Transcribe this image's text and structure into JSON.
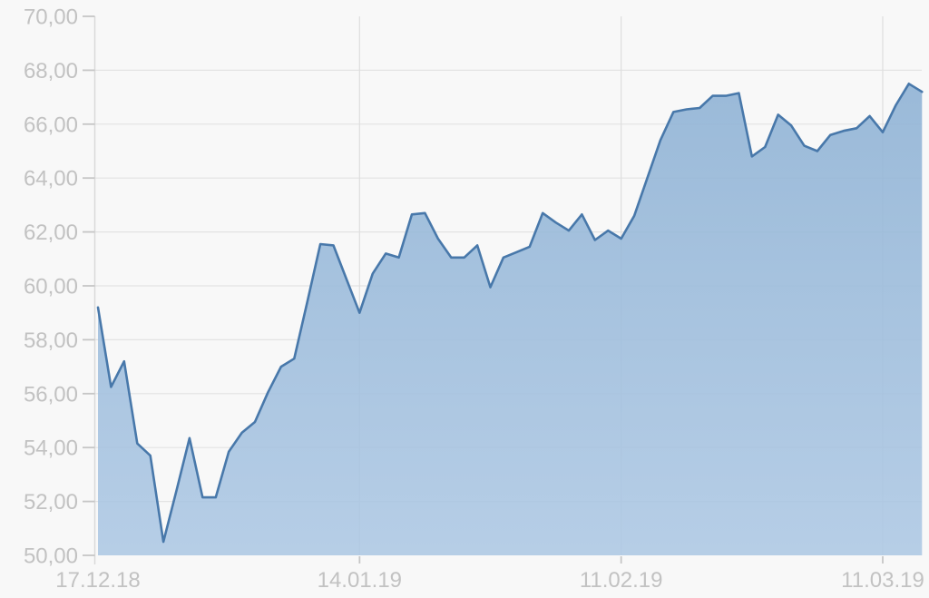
{
  "chart_data": {
    "type": "area",
    "title": "",
    "xlabel": "",
    "ylabel": "",
    "ylim": [
      50,
      70
    ],
    "y_tick_step": 2,
    "grid": true,
    "legend": false,
    "y_tick_values": [
      70,
      68,
      66,
      64,
      62,
      60,
      58,
      56,
      54,
      52,
      50
    ],
    "y_tick_labels": [
      "70,00",
      "68,00",
      "66,00",
      "64,00",
      "62,00",
      "60,00",
      "58,00",
      "56,00",
      "54,00",
      "52,00",
      "50,00"
    ],
    "x_tick_labels": [
      "17.12.18",
      "14.01.19",
      "11.02.19",
      "11.03.19"
    ],
    "x_tick_indices": [
      0,
      20,
      40,
      60
    ],
    "values": [
      59.2,
      56.25,
      57.2,
      54.15,
      53.7,
      50.5,
      52.4,
      54.35,
      52.15,
      52.15,
      53.85,
      54.55,
      54.95,
      56.05,
      57.0,
      57.3,
      59.4,
      61.55,
      61.5,
      60.25,
      59.0,
      60.45,
      61.2,
      61.05,
      62.65,
      62.7,
      61.75,
      61.05,
      61.05,
      61.5,
      59.95,
      61.05,
      61.25,
      61.45,
      62.7,
      62.35,
      62.05,
      62.65,
      61.7,
      62.05,
      61.75,
      62.6,
      64.0,
      65.4,
      66.45,
      66.55,
      66.6,
      67.05,
      67.05,
      67.15,
      64.8,
      65.15,
      66.35,
      65.95,
      65.2,
      65.0,
      65.6,
      65.75,
      65.85,
      66.3,
      65.7,
      66.7,
      67.5,
      67.2
    ]
  },
  "style": {
    "background": "#f8f8f8",
    "line_color": "#4878aa",
    "fill_top": "#8db1d4",
    "fill_bottom": "#adc8e4",
    "fill_opacity": 0.88,
    "hgrid_color": "#e3e3e3",
    "vgrid_color": "#dedede",
    "axis_color": "#d9d9d9",
    "tick_color": "#c6c6c6",
    "label_color": "#c2c2c2"
  }
}
